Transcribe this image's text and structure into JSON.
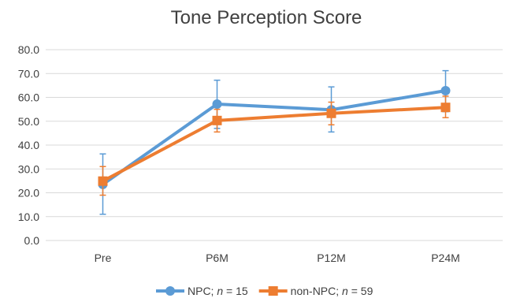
{
  "chart_data": {
    "type": "line",
    "title": "Tone Perception Score",
    "xlabel": "",
    "ylabel": "",
    "categories": [
      "Pre",
      "P6M",
      "P12M",
      "P24M"
    ],
    "ylim": [
      0,
      80
    ],
    "yticks": [
      "0.0",
      "10.0",
      "20.0",
      "30.0",
      "40.0",
      "50.0",
      "60.0",
      "70.0",
      "80.0"
    ],
    "grid": true,
    "legend_position": "bottom",
    "series": [
      {
        "name": "NPC; n = 15",
        "name_prefix": "NPC; ",
        "name_var": "n",
        "name_suffix": " = 15",
        "color": "#5B9BD5",
        "marker": "circle",
        "values": [
          23.5,
          57.2,
          54.8,
          62.8
        ],
        "err_low": [
          11.0,
          47.0,
          45.5,
          54.0
        ],
        "err_high": [
          36.3,
          67.2,
          64.4,
          71.2
        ]
      },
      {
        "name": "non-NPC; n = 59",
        "name_prefix": "non-NPC; ",
        "name_var": "n",
        "name_suffix": " = 59",
        "color": "#ED7D31",
        "marker": "square",
        "values": [
          24.9,
          50.3,
          53.3,
          55.8
        ],
        "err_low": [
          19.0,
          45.5,
          48.5,
          51.5
        ],
        "err_high": [
          31.0,
          55.0,
          58.0,
          60.5
        ]
      }
    ]
  }
}
